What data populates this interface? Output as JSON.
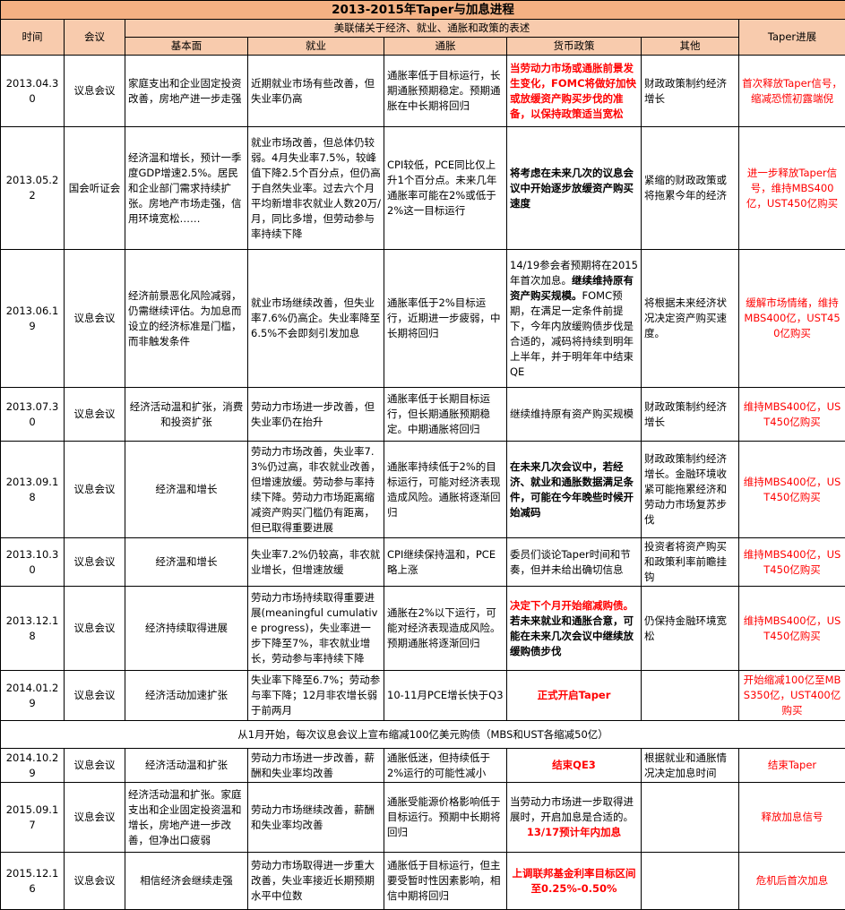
{
  "title": "2013-2015年Taper与加息进程",
  "headers": {
    "time": "时间",
    "meeting": "会议",
    "statement_group": "美联储关于经济、就业、通胀和政策的表述",
    "fundamentals": "基本面",
    "employment": "就业",
    "inflation": "通胀",
    "monetary_policy": "货币政策",
    "other": "其他",
    "taper_progress": "Taper进展"
  },
  "rows": [
    {
      "date": "2013.04.30",
      "meeting": "议息会议",
      "fundamentals": "家庭支出和企业固定投资改善，房地产进一步走强",
      "employment": "近期就业市场有些改善，但失业率仍高",
      "inflation": "通胀率低于目标运行，长期通胀预期稳定。预期通胀在中长期将回归",
      "policy_parts": [
        {
          "text": "当劳动力市场或通胀前景发生变化，FOMC将做好加快或放缓资产购买步伐的准备，以保持政策适当宽松",
          "style": "r"
        }
      ],
      "other": "财政政策制约经济增长",
      "taper": "首次释放Taper信号，缩减恐慌初露端倪"
    },
    {
      "date": "2013.05.22",
      "meeting": "国会听证会",
      "fundamentals": "经济温和增长，预计一季度GDP增速2.5%。居民和企业部门需求持续扩张。房地产市场走强，信用环境宽松……",
      "employment": "就业市场改善，但总体仍较弱。4月失业率7.5%，较峰值下降2.5个百分点，但仍高于自然失业率。过去六个月平均新增非农就业人数20万/月，同比多增，但劳动参与率持续下降",
      "inflation": "CPI较低，PCE同比仅上升1个百分点。未来几年通胀率可能在2%或低于2%这一目标运行",
      "policy_parts": [
        {
          "text": "将考虑在未来几次的议息会议中开始逐步放缓资产购买速度",
          "style": "b"
        }
      ],
      "other": "紧缩的财政政策或将拖累今年的经济",
      "taper": "进一步释放Taper信号，维持MBS400亿，UST450亿购买"
    },
    {
      "date": "2013.06.19",
      "meeting": "议息会议",
      "fundamentals": "经济前景恶化风险减弱，仍需继续评估。为加息而设立的经济标准是门槛，而非触发条件",
      "employment": "就业市场继续改善，但失业率7.6%仍高企。失业率降至6.5%不会即刻引发加息",
      "inflation": "通胀率低于2%目标运行，近期进一步疲弱，中长期将回归",
      "policy_parts": [
        {
          "text": "14/19参会者预期将在2015年首次加息。",
          "style": ""
        },
        {
          "text": "继续维持原有资产购买规模。",
          "style": "b"
        },
        {
          "text": "FOMC预期，在满足一定条件前提下，今年内放缓购债步伐是合适的，减码将持续到明年上半年，并于明年年中结束QE",
          "style": ""
        }
      ],
      "other": "将根据未来经济状况决定资产购买速度。",
      "taper": "缓解市场情绪，维持MBS400亿，UST450亿购买"
    },
    {
      "date": "2013.07.30",
      "meeting": "议息会议",
      "fundamentals": "经济活动温和扩张，消费和投资扩张",
      "employment": "劳动力市场进一步改善，但失业率仍在抬升",
      "inflation": "通胀率低于长期目标运行，但长期通胀预期稳定。中期通胀将回归",
      "policy_parts": [
        {
          "text": "继续维持原有资产购买规模",
          "style": ""
        }
      ],
      "other": "财政政策制约经济增长",
      "taper": "维持MBS400亿，UST450亿购买"
    },
    {
      "date": "2013.09.18",
      "meeting": "议息会议",
      "fundamentals": "经济温和增长",
      "employment": "劳动力市场改善，失业率7.3%仍过高，非农就业改善，但增速放缓。劳动参与率持续下降。劳动力市场距离缩减资产购买门槛仍有距离，但已取得重要进展",
      "inflation": "通胀率持续低于2%的目标运行，可能对经济表现造成风险。通胀将逐渐回归",
      "policy_parts": [
        {
          "text": "在未来几次会议中，若经济、就业和通胀数据满足条件，可能在今年晚些时候开始减码",
          "style": "b"
        }
      ],
      "other": "财政政策制约经济增长。金融环境收紧可能拖累经济和劳动力市场复苏步伐",
      "taper": "维持MBS400亿，UST450亿购买"
    },
    {
      "date": "2013.10.30",
      "meeting": "议息会议",
      "fundamentals": "经济温和增长",
      "employment": "失业率7.2%仍较高，非农就业增长，但增速放缓",
      "inflation": "CPI继续保持温和，PCE略上涨",
      "policy_parts": [
        {
          "text": "委员们谈论Taper时间和节奏，但并未给出确切信息",
          "style": ""
        }
      ],
      "other": "投资者将资产购买和政策利率前瞻挂钩",
      "taper": "维持MBS400亿，UST450亿购买"
    },
    {
      "date": "2013.12.18",
      "meeting": "议息会议",
      "fundamentals": "经济持续取得进展",
      "employment": "劳动力市场持续取得重要进展(meaningful cumulative progress)，失业率进一步下降至7%，非农就业增长，劳动参与率持续下降",
      "inflation": "通胀在2%以下运行，可能对经济表现造成风险。预期通胀将逐渐回归",
      "policy_parts": [
        {
          "text": "决定下个月开始缩减购债。",
          "style": "r"
        },
        {
          "text": "若未来就业和通胀合意，可能在未来几次会议中继续放缓购债步伐",
          "style": "b"
        }
      ],
      "other": "仍保持金融环境宽松",
      "taper": "维持MBS400亿，UST450亿购买"
    },
    {
      "date": "2014.01.29",
      "meeting": "议息会议",
      "fundamentals": "经济活动加速扩张",
      "employment": "失业率下降至6.7%；劳动参与率下降；12月非农增长弱于前两月",
      "inflation": "10-11月PCE增长快于Q3",
      "policy_parts": [
        {
          "text": "正式开启Taper",
          "style": "r"
        }
      ],
      "other": "",
      "taper": "开始缩减100亿至MBS350亿，UST400亿购买"
    }
  ],
  "note": "从1月开始，每次议息会议上宣布缩减100亿美元购债（MBS和UST各缩减50亿）",
  "rows2": [
    {
      "date": "2014.10.29",
      "meeting": "议息会议",
      "fundamentals": "经济活动温和扩张",
      "employment": "劳动力市场进一步改善，薪酬和失业率均改善",
      "inflation": "通胀低迷，但持续低于2%运行的可能性减小",
      "policy_parts": [
        {
          "text": "结束QE3",
          "style": "r"
        }
      ],
      "other": "根据就业和通胀情况决定加息时间",
      "taper": "结束Taper"
    },
    {
      "date": "2015.09.17",
      "meeting": "议息会议",
      "fundamentals": "经济活动温和扩张。家庭支出和企业固定投资温和增长，房地产进一步改善，但净出口疲弱",
      "employment": "劳动力市场继续改善，薪酬和失业率均改善",
      "inflation": "通胀受能源价格影响低于目标运行。预期中长期将回归",
      "policy_parts": [
        {
          "text": "当劳动力市场进一步取得进展时，开启加息是合适的。",
          "style": ""
        },
        {
          "text": "13/17预计年内加息",
          "style": "r"
        }
      ],
      "other": "",
      "taper": "释放加息信号"
    },
    {
      "date": "2015.12.16",
      "meeting": "议息会议",
      "fundamentals": "相信经济会继续走强",
      "employment": "劳动力市场取得进一步重大改善，失业率接近长期预期水平中位数",
      "inflation": "通胀低于目标运行，但主要受暂时性因素影响，相信中期将回归",
      "policy_parts": [
        {
          "text": "上调联邦基金利率目标区间至0.25%-0.50%",
          "style": "r"
        }
      ],
      "other": "",
      "taper": "危机后首次加息"
    }
  ]
}
